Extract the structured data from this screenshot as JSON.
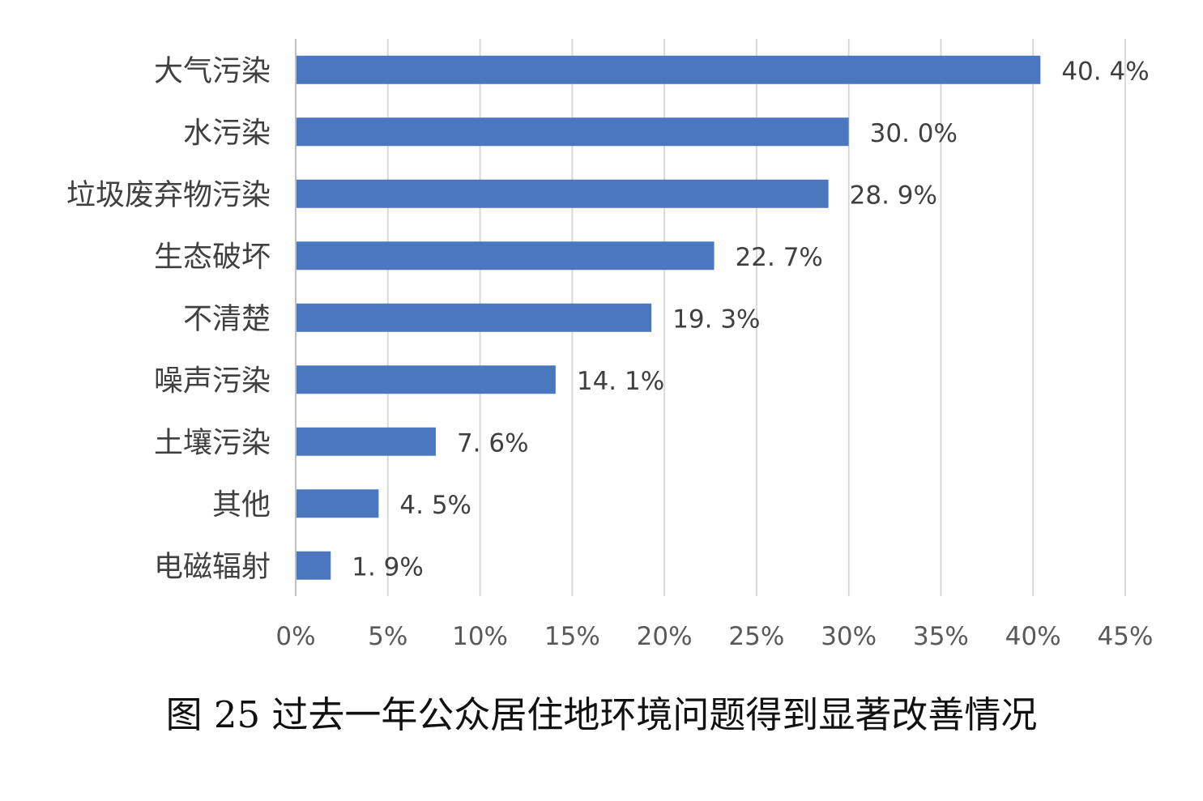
{
  "caption": "图 25 过去一年公众居住地环境问题得到显著改善情况",
  "chart_data": {
    "type": "bar",
    "orientation": "horizontal",
    "categories": [
      "大气污染",
      "水污染",
      "垃圾废弃物污染",
      "生态破坏",
      "不清楚",
      "噪声污染",
      "土壤污染",
      "其他",
      "电磁辐射"
    ],
    "values": [
      40.4,
      30.0,
      28.9,
      22.7,
      19.3,
      14.1,
      7.6,
      4.5,
      1.9
    ],
    "value_labels": [
      "40. 4%",
      "30. 0%",
      "28. 9%",
      "22. 7%",
      "19. 3%",
      "14. 1%",
      "7. 6%",
      "4. 5%",
      "1. 9%"
    ],
    "x_ticks": [
      "0%",
      "5%",
      "10%",
      "15%",
      "20%",
      "25%",
      "30%",
      "35%",
      "40%",
      "45%"
    ],
    "xlim": [
      0,
      45
    ],
    "grid": true,
    "bar_color": "#4a77bd",
    "grid_color": "#d9d9d9"
  }
}
